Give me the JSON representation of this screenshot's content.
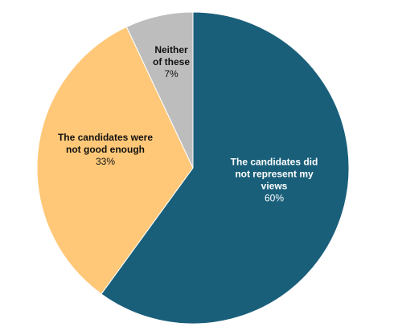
{
  "chart_data": {
    "type": "pie",
    "title": "",
    "slices": [
      {
        "label_lines": [
          "The candidates did",
          "not represent my",
          "views"
        ],
        "value_text": "60%",
        "value": 60,
        "color": "#1a5f7a",
        "label_color": "#ffffff"
      },
      {
        "label_lines": [
          "The candidates were",
          "not good enough"
        ],
        "value_text": "33%",
        "value": 33,
        "color": "#ffc878",
        "label_color": "#111111"
      },
      {
        "label_lines": [
          "Neither",
          "of these"
        ],
        "value_text": "7%",
        "value": 7,
        "color": "#bdbdbd",
        "label_color": "#111111"
      }
    ],
    "legend": "none",
    "start_angle_deg": 0,
    "direction": "clockwise"
  }
}
